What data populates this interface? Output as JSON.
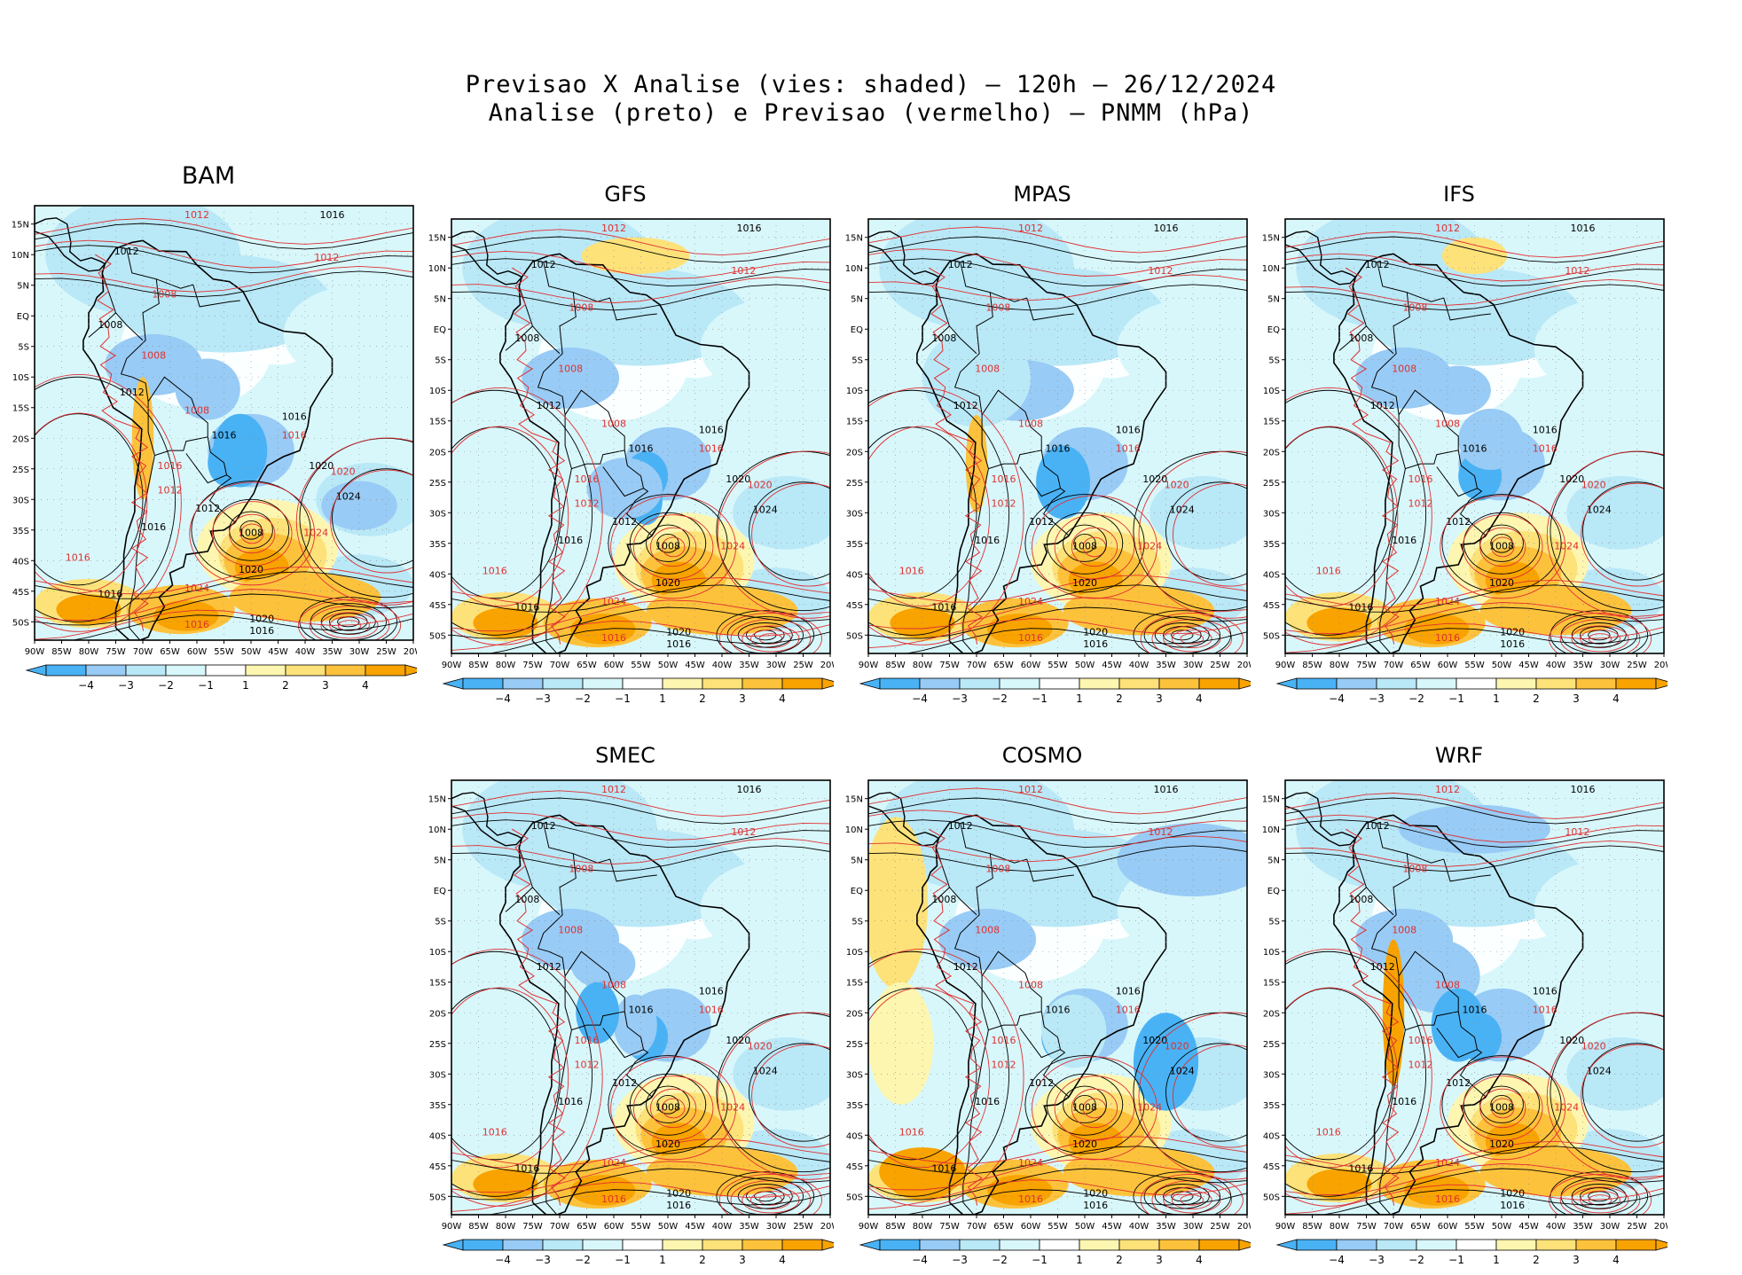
{
  "title": {
    "line1": "Previsao X Analise (vies: shaded) – 120h – 26/12/2024",
    "line2": "Analise (preto) e Previsao (vermelho) – PNMM (hPa)"
  },
  "colors": {
    "neg4": "#49b2f5",
    "neg3": "#98cbf5",
    "neg2": "#b9e8f7",
    "neg1": "#d8f7fb",
    "zero": "#ffffff",
    "pos1": "#fdf6b0",
    "pos2": "#fde27a",
    "pos3": "#fdc23c",
    "pos4": "#f8a300",
    "analysis": "#000000",
    "forecast": "#e03030",
    "land": "#ffffff"
  },
  "lat_labels": [
    "15N",
    "10N",
    "5N",
    "EQ",
    "5S",
    "10S",
    "15S",
    "20S",
    "25S",
    "30S",
    "35S",
    "40S",
    "45S",
    "50S"
  ],
  "lon_labels": [
    "90W",
    "85W",
    "80W",
    "75W",
    "70W",
    "65W",
    "60W",
    "55W",
    "50W",
    "45W",
    "40W",
    "35W",
    "30W",
    "25W",
    "20W"
  ],
  "colorbar_labels": [
    "−4",
    "−3",
    "−2",
    "−1",
    "1",
    "2",
    "3",
    "4"
  ],
  "panels": [
    {
      "name": "BAM",
      "contour_labels": {
        "black": [
          "1016",
          "1012",
          "1008",
          "1012",
          "1016",
          "1016",
          "1020",
          "1024",
          "1012",
          "1016",
          "1008",
          "1020",
          "1016",
          "1020",
          "1016"
        ],
        "red": [
          "1012",
          "1012",
          "1008",
          "1008",
          "1008",
          "1016",
          "1016",
          "1012",
          "1020",
          "1024",
          "1016",
          "1024",
          "1016"
        ]
      }
    },
    {
      "name": "GFS",
      "contour_labels": {
        "black": [
          "1016",
          "1012",
          "1008",
          "1012",
          "1016",
          "1016",
          "1020",
          "1024",
          "1012",
          "1016",
          "1008",
          "1020",
          "1016",
          "1020",
          "1016"
        ],
        "red": [
          "1012",
          "1012",
          "1008",
          "1008",
          "1008",
          "1016",
          "1016",
          "1012",
          "1020",
          "1024",
          "1016",
          "1024",
          "1016"
        ]
      }
    },
    {
      "name": "MPAS",
      "contour_labels": {
        "black": [
          "1016",
          "1012",
          "1008",
          "1012",
          "1016",
          "1016",
          "1020",
          "1024",
          "1012",
          "1016",
          "1008",
          "1020",
          "1016",
          "1020",
          "1016"
        ],
        "red": [
          "1012",
          "1012",
          "1008",
          "1008",
          "1008",
          "1016",
          "1016",
          "1012",
          "1020",
          "1024",
          "1016",
          "1024",
          "1016"
        ]
      }
    },
    {
      "name": "IFS",
      "contour_labels": {
        "black": [
          "1016",
          "1012",
          "1008",
          "1012",
          "1016",
          "1016",
          "1020",
          "1024",
          "1012",
          "1016",
          "1008",
          "1020",
          "1016",
          "1020",
          "1016"
        ],
        "red": [
          "1012",
          "1012",
          "1008",
          "1008",
          "1008",
          "1016",
          "1016",
          "1012",
          "1020",
          "1024",
          "1016",
          "1024",
          "1016"
        ]
      }
    },
    {
      "name": "SMEC",
      "contour_labels": {
        "black": [
          "1016",
          "1012",
          "1008",
          "1012",
          "1016",
          "1016",
          "1020",
          "1024",
          "1012",
          "1016",
          "1008",
          "1020",
          "1016",
          "1020",
          "1016"
        ],
        "red": [
          "1012",
          "1012",
          "1008",
          "1008",
          "1008",
          "1016",
          "1016",
          "1012",
          "1020",
          "1024",
          "1016",
          "1024",
          "1016"
        ]
      }
    },
    {
      "name": "COSMO",
      "contour_labels": {
        "black": [
          "1016",
          "1012",
          "1008",
          "1012",
          "1016",
          "1016",
          "1020",
          "1024",
          "1012",
          "1016",
          "1008",
          "1020",
          "1016",
          "1020",
          "1016"
        ],
        "red": [
          "1012",
          "1012",
          "1008",
          "1008",
          "1008",
          "1016",
          "1016",
          "1012",
          "1020",
          "1024",
          "1016",
          "1024",
          "1016"
        ]
      }
    },
    {
      "name": "WRF",
      "contour_labels": {
        "black": [
          "1016",
          "1012",
          "1008",
          "1012",
          "1016",
          "1016",
          "1020",
          "1024",
          "1012",
          "1016",
          "1008",
          "1020",
          "1016",
          "1020",
          "1016"
        ],
        "red": [
          "1012",
          "1012",
          "1008",
          "1008",
          "1008",
          "1016",
          "1016",
          "1012",
          "1020",
          "1024",
          "1016",
          "1024",
          "1016"
        ]
      }
    }
  ]
}
